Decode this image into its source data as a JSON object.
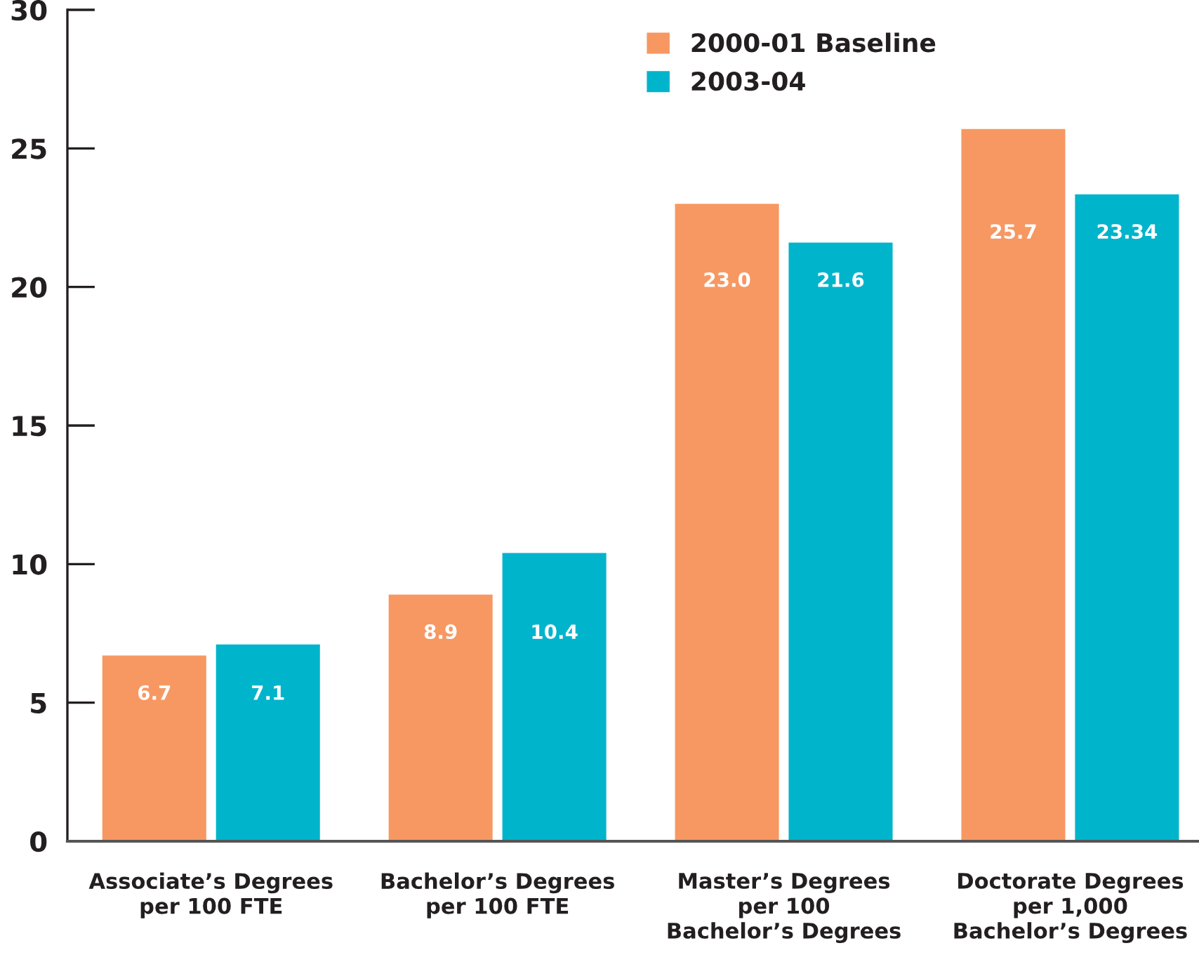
{
  "chart_data": {
    "type": "bar",
    "categories": [
      "Associate’s Degrees\nper 100 FTE",
      "Bachelor’s Degrees\nper 100 FTE",
      "Master’s Degrees\nper 100\nBachelor’s Degrees",
      "Doctorate Degrees\nper 1,000\nBachelor’s Degrees"
    ],
    "series": [
      {
        "name": "2000-01 Baseline",
        "color": "#f79862",
        "values": [
          6.7,
          8.9,
          23.0,
          25.7
        ],
        "value_labels": [
          "6.7",
          "8.9",
          "23.0",
          "25.7"
        ]
      },
      {
        "name": "2003-04",
        "color": "#00b4cc",
        "values": [
          7.1,
          10.4,
          21.6,
          23.34
        ],
        "value_labels": [
          "7.1",
          "10.4",
          "21.6",
          "23.34"
        ]
      }
    ],
    "ylim": [
      0,
      30
    ],
    "yticks": [
      0,
      5,
      10,
      15,
      20,
      25,
      30
    ],
    "grid": false,
    "legend": "top"
  }
}
